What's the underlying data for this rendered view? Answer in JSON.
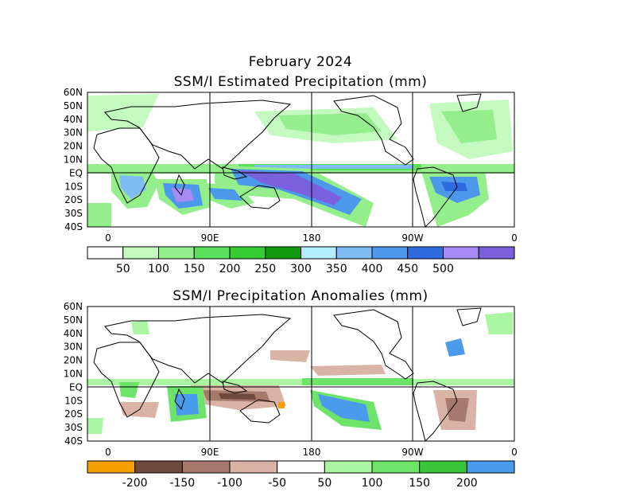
{
  "titles": {
    "month": "February 2024",
    "top_panel": "SSM/I Estimated Precipitation (mm)",
    "bottom_panel": "SSM/I Precipitation Anomalies (mm)"
  },
  "axes": {
    "lat_labels": [
      "60N",
      "50N",
      "40N",
      "30N",
      "20N",
      "10N",
      "EQ",
      "10S",
      "20S",
      "30S",
      "40S"
    ],
    "lon_labels": [
      "0",
      "90E",
      "180",
      "90W",
      "0"
    ]
  },
  "colorbar_top": {
    "colors": [
      "#ffffff",
      "#c4f9bf",
      "#94ee8c",
      "#5ce05c",
      "#36cc36",
      "#0f9a0f",
      "#b3eeff",
      "#7fbcf5",
      "#4c98ea",
      "#2e6ae0",
      "#a68af5",
      "#7a60dc"
    ],
    "labels": [
      "50",
      "100",
      "150",
      "200",
      "250",
      "300",
      "350",
      "400",
      "450",
      "500"
    ]
  },
  "colorbar_bottom": {
    "colors": [
      "#f5a000",
      "#6e4a3e",
      "#a57a6c",
      "#d9b3a6",
      "#ffffff",
      "#aaf5a2",
      "#6ee36a",
      "#3ac63a",
      "#4b9bec"
    ],
    "labels": [
      "-200",
      "-150",
      "-100",
      "-50",
      "50",
      "100",
      "150",
      "200"
    ]
  }
}
